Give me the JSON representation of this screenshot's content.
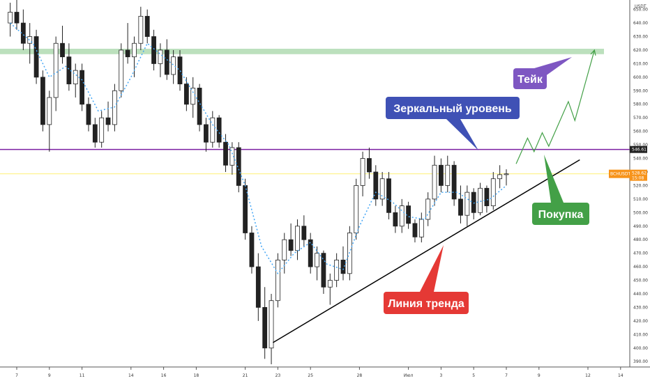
{
  "chart_data": {
    "type": "candlestick",
    "currency_label": "USDT",
    "y_ticks": [
      "650.00",
      "640.00",
      "630.00",
      "620.00",
      "610.00",
      "600.00",
      "590.00",
      "580.00",
      "570.00",
      "560.00",
      "550.00",
      "540.00",
      "530.00",
      "520.00",
      "510.00",
      "500.00",
      "490.00",
      "480.00",
      "470.00",
      "460.00",
      "450.00",
      "440.00",
      "430.00",
      "420.00",
      "410.00",
      "400.00",
      "390.00"
    ],
    "x_ticks": [
      {
        "label": "7",
        "day": 7
      },
      {
        "label": "9",
        "day": 9
      },
      {
        "label": "11",
        "day": 11
      },
      {
        "label": "14",
        "day": 14
      },
      {
        "label": "16",
        "day": 16
      },
      {
        "label": "18",
        "day": 18
      },
      {
        "label": "21",
        "day": 21
      },
      {
        "label": "23",
        "day": 23
      },
      {
        "label": "25",
        "day": 25
      },
      {
        "label": "28",
        "day": 28
      },
      {
        "label": "Июл",
        "day": 31
      },
      {
        "label": "3",
        "day": 33
      },
      {
        "label": "5",
        "day": 35
      },
      {
        "label": "7",
        "day": 37
      },
      {
        "label": "9",
        "day": 39
      },
      {
        "label": "12",
        "day": 42
      },
      {
        "label": "14",
        "day": 44
      }
    ],
    "ylim": [
      386,
      657
    ],
    "price_tag": {
      "symbol": "BCHUSDT",
      "value": "528.62",
      "timer": "15:08",
      "color": "#f7931a"
    },
    "mirror_level": {
      "value": "546.61",
      "price": 546.61,
      "color": "#7b1fa2"
    },
    "take_zone": {
      "from": 617,
      "to": 621,
      "color": "#a5d6a7"
    },
    "trend_line": {
      "start": {
        "day": 22.7,
        "price": 404
      },
      "end": {
        "day": 41.5,
        "price": 539
      }
    },
    "forecast_path": [
      {
        "day": 37.6,
        "price": 536
      },
      {
        "day": 38.3,
        "price": 555
      },
      {
        "day": 38.7,
        "price": 545
      },
      {
        "day": 39.2,
        "price": 559
      },
      {
        "day": 39.6,
        "price": 549
      },
      {
        "day": 40.8,
        "price": 582
      },
      {
        "day": 41.2,
        "price": 568
      },
      {
        "day": 42.4,
        "price": 620
      }
    ],
    "candles": [
      {
        "day": 6.6,
        "o": 640,
        "h": 655,
        "l": 630,
        "c": 648
      },
      {
        "day": 7.0,
        "o": 648,
        "h": 657,
        "l": 635,
        "c": 640
      },
      {
        "day": 7.4,
        "o": 640,
        "h": 650,
        "l": 620,
        "c": 625
      },
      {
        "day": 7.8,
        "o": 625,
        "h": 640,
        "l": 610,
        "c": 630
      },
      {
        "day": 8.2,
        "o": 630,
        "h": 635,
        "l": 595,
        "c": 600
      },
      {
        "day": 8.6,
        "o": 600,
        "h": 605,
        "l": 560,
        "c": 565
      },
      {
        "day": 9.0,
        "o": 565,
        "h": 590,
        "l": 545,
        "c": 585
      },
      {
        "day": 9.4,
        "o": 585,
        "h": 630,
        "l": 575,
        "c": 625
      },
      {
        "day": 9.8,
        "o": 625,
        "h": 638,
        "l": 610,
        "c": 615
      },
      {
        "day": 10.2,
        "o": 615,
        "h": 625,
        "l": 590,
        "c": 595
      },
      {
        "day": 10.6,
        "o": 595,
        "h": 610,
        "l": 585,
        "c": 605
      },
      {
        "day": 11.0,
        "o": 605,
        "h": 610,
        "l": 575,
        "c": 580
      },
      {
        "day": 11.4,
        "o": 580,
        "h": 585,
        "l": 560,
        "c": 565
      },
      {
        "day": 11.8,
        "o": 565,
        "h": 570,
        "l": 548,
        "c": 552
      },
      {
        "day": 12.2,
        "o": 552,
        "h": 575,
        "l": 548,
        "c": 570
      },
      {
        "day": 12.6,
        "o": 570,
        "h": 582,
        "l": 560,
        "c": 565
      },
      {
        "day": 13.0,
        "o": 565,
        "h": 595,
        "l": 560,
        "c": 590
      },
      {
        "day": 13.4,
        "o": 590,
        "h": 625,
        "l": 585,
        "c": 620
      },
      {
        "day": 13.8,
        "o": 620,
        "h": 640,
        "l": 610,
        "c": 615
      },
      {
        "day": 14.2,
        "o": 615,
        "h": 630,
        "l": 600,
        "c": 625
      },
      {
        "day": 14.6,
        "o": 625,
        "h": 652,
        "l": 620,
        "c": 645
      },
      {
        "day": 15.0,
        "o": 645,
        "h": 650,
        "l": 625,
        "c": 630
      },
      {
        "day": 15.4,
        "o": 630,
        "h": 635,
        "l": 605,
        "c": 610
      },
      {
        "day": 15.8,
        "o": 610,
        "h": 625,
        "l": 600,
        "c": 620
      },
      {
        "day": 16.2,
        "o": 620,
        "h": 628,
        "l": 598,
        "c": 602
      },
      {
        "day": 16.6,
        "o": 602,
        "h": 620,
        "l": 595,
        "c": 615
      },
      {
        "day": 17.0,
        "o": 615,
        "h": 620,
        "l": 590,
        "c": 595
      },
      {
        "day": 17.4,
        "o": 595,
        "h": 600,
        "l": 575,
        "c": 580
      },
      {
        "day": 17.8,
        "o": 580,
        "h": 600,
        "l": 570,
        "c": 592
      },
      {
        "day": 18.2,
        "o": 592,
        "h": 595,
        "l": 560,
        "c": 565
      },
      {
        "day": 18.6,
        "o": 565,
        "h": 570,
        "l": 545,
        "c": 552
      },
      {
        "day": 19.0,
        "o": 552,
        "h": 575,
        "l": 548,
        "c": 570
      },
      {
        "day": 19.4,
        "o": 570,
        "h": 572,
        "l": 548,
        "c": 552
      },
      {
        "day": 19.8,
        "o": 552,
        "h": 558,
        "l": 530,
        "c": 535
      },
      {
        "day": 20.2,
        "o": 535,
        "h": 552,
        "l": 528,
        "c": 548
      },
      {
        "day": 20.6,
        "o": 548,
        "h": 552,
        "l": 515,
        "c": 520
      },
      {
        "day": 21.0,
        "o": 520,
        "h": 525,
        "l": 480,
        "c": 485
      },
      {
        "day": 21.4,
        "o": 485,
        "h": 490,
        "l": 455,
        "c": 460
      },
      {
        "day": 21.8,
        "o": 460,
        "h": 470,
        "l": 420,
        "c": 430
      },
      {
        "day": 22.2,
        "o": 430,
        "h": 445,
        "l": 392,
        "c": 400
      },
      {
        "day": 22.6,
        "o": 400,
        "h": 440,
        "l": 388,
        "c": 435
      },
      {
        "day": 23.0,
        "o": 435,
        "h": 470,
        "l": 430,
        "c": 465
      },
      {
        "day": 23.4,
        "o": 465,
        "h": 485,
        "l": 455,
        "c": 480
      },
      {
        "day": 23.8,
        "o": 480,
        "h": 492,
        "l": 468,
        "c": 472
      },
      {
        "day": 24.2,
        "o": 472,
        "h": 495,
        "l": 465,
        "c": 490
      },
      {
        "day": 24.6,
        "o": 490,
        "h": 498,
        "l": 475,
        "c": 480
      },
      {
        "day": 25.0,
        "o": 480,
        "h": 485,
        "l": 455,
        "c": 460
      },
      {
        "day": 25.4,
        "o": 460,
        "h": 475,
        "l": 450,
        "c": 470
      },
      {
        "day": 25.8,
        "o": 470,
        "h": 472,
        "l": 440,
        "c": 445
      },
      {
        "day": 26.2,
        "o": 445,
        "h": 455,
        "l": 432,
        "c": 450
      },
      {
        "day": 26.6,
        "o": 450,
        "h": 470,
        "l": 445,
        "c": 465
      },
      {
        "day": 27.0,
        "o": 465,
        "h": 475,
        "l": 450,
        "c": 455
      },
      {
        "day": 27.4,
        "o": 455,
        "h": 490,
        "l": 450,
        "c": 485
      },
      {
        "day": 27.8,
        "o": 485,
        "h": 525,
        "l": 480,
        "c": 520
      },
      {
        "day": 28.2,
        "o": 520,
        "h": 545,
        "l": 512,
        "c": 540
      },
      {
        "day": 28.6,
        "o": 540,
        "h": 548,
        "l": 525,
        "c": 530
      },
      {
        "day": 29.0,
        "o": 530,
        "h": 535,
        "l": 505,
        "c": 510
      },
      {
        "day": 29.4,
        "o": 510,
        "h": 530,
        "l": 505,
        "c": 525
      },
      {
        "day": 29.8,
        "o": 525,
        "h": 530,
        "l": 495,
        "c": 500
      },
      {
        "day": 30.2,
        "o": 500,
        "h": 505,
        "l": 485,
        "c": 490
      },
      {
        "day": 30.6,
        "o": 490,
        "h": 510,
        "l": 485,
        "c": 505
      },
      {
        "day": 31.0,
        "o": 505,
        "h": 508,
        "l": 488,
        "c": 492
      },
      {
        "day": 31.4,
        "o": 492,
        "h": 495,
        "l": 478,
        "c": 482
      },
      {
        "day": 31.8,
        "o": 482,
        "h": 500,
        "l": 478,
        "c": 495
      },
      {
        "day": 32.2,
        "o": 495,
        "h": 515,
        "l": 490,
        "c": 510
      },
      {
        "day": 32.6,
        "o": 510,
        "h": 542,
        "l": 505,
        "c": 535
      },
      {
        "day": 33.0,
        "o": 535,
        "h": 540,
        "l": 515,
        "c": 520
      },
      {
        "day": 33.4,
        "o": 520,
        "h": 542,
        "l": 515,
        "c": 535
      },
      {
        "day": 33.8,
        "o": 535,
        "h": 538,
        "l": 505,
        "c": 510
      },
      {
        "day": 34.2,
        "o": 510,
        "h": 520,
        "l": 492,
        "c": 498
      },
      {
        "day": 34.6,
        "o": 498,
        "h": 520,
        "l": 490,
        "c": 515
      },
      {
        "day": 35.0,
        "o": 515,
        "h": 518,
        "l": 495,
        "c": 500
      },
      {
        "day": 35.4,
        "o": 500,
        "h": 522,
        "l": 498,
        "c": 518
      },
      {
        "day": 35.8,
        "o": 518,
        "h": 520,
        "l": 500,
        "c": 505
      },
      {
        "day": 36.2,
        "o": 505,
        "h": 530,
        "l": 502,
        "c": 525
      },
      {
        "day": 36.6,
        "o": 525,
        "h": 535,
        "l": 518,
        "c": 528
      },
      {
        "day": 37.0,
        "o": 528,
        "h": 532,
        "l": 520,
        "c": 528.62
      }
    ],
    "moving_average": [
      {
        "day": 6.6,
        "price": 640
      },
      {
        "day": 8.0,
        "price": 625
      },
      {
        "day": 9.0,
        "price": 600
      },
      {
        "day": 10.0,
        "price": 608
      },
      {
        "day": 11.0,
        "price": 598
      },
      {
        "day": 12.0,
        "price": 575
      },
      {
        "day": 13.0,
        "price": 578
      },
      {
        "day": 14.0,
        "price": 600
      },
      {
        "day": 15.0,
        "price": 625
      },
      {
        "day": 16.0,
        "price": 615
      },
      {
        "day": 17.0,
        "price": 605
      },
      {
        "day": 18.0,
        "price": 585
      },
      {
        "day": 19.0,
        "price": 565
      },
      {
        "day": 20.0,
        "price": 550
      },
      {
        "day": 21.0,
        "price": 520
      },
      {
        "day": 22.0,
        "price": 475
      },
      {
        "day": 23.0,
        "price": 455
      },
      {
        "day": 24.0,
        "price": 470
      },
      {
        "day": 25.0,
        "price": 478
      },
      {
        "day": 26.0,
        "price": 462
      },
      {
        "day": 27.0,
        "price": 458
      },
      {
        "day": 28.0,
        "price": 490
      },
      {
        "day": 29.0,
        "price": 515
      },
      {
        "day": 30.0,
        "price": 508
      },
      {
        "day": 31.0,
        "price": 497
      },
      {
        "day": 32.0,
        "price": 495
      },
      {
        "day": 33.0,
        "price": 515
      },
      {
        "day": 34.0,
        "price": 515
      },
      {
        "day": 35.0,
        "price": 507
      },
      {
        "day": 36.0,
        "price": 510
      },
      {
        "day": 37.0,
        "price": 520
      }
    ],
    "annotations": [
      {
        "text": "Тейк",
        "color": "#7e57c2",
        "box": {
          "x": 736,
          "y": 98,
          "w": 48,
          "h": 30
        },
        "pointer": [
          [
            766,
            98
          ],
          [
            778,
            112
          ],
          [
            820,
            82
          ]
        ]
      },
      {
        "text": "Зеркальный уровень",
        "color": "#3f51b5",
        "box": {
          "x": 553,
          "y": 139,
          "w": 192,
          "h": 32
        },
        "pointer": [
          [
            640,
            171
          ],
          [
            660,
            171
          ],
          [
            686,
            216
          ]
        ]
      },
      {
        "text": "Покупка",
        "color": "#43a047",
        "box": {
          "x": 763,
          "y": 291,
          "w": 82,
          "h": 32
        },
        "pointer": [
          [
            790,
            291
          ],
          [
            808,
            291
          ],
          [
            780,
            222
          ]
        ]
      },
      {
        "text": "Линия тренда",
        "color": "#e53935",
        "box": {
          "x": 550,
          "y": 419,
          "w": 122,
          "h": 32
        },
        "pointer": [
          [
            602,
            419
          ],
          [
            622,
            419
          ],
          [
            636,
            352
          ]
        ]
      }
    ]
  }
}
